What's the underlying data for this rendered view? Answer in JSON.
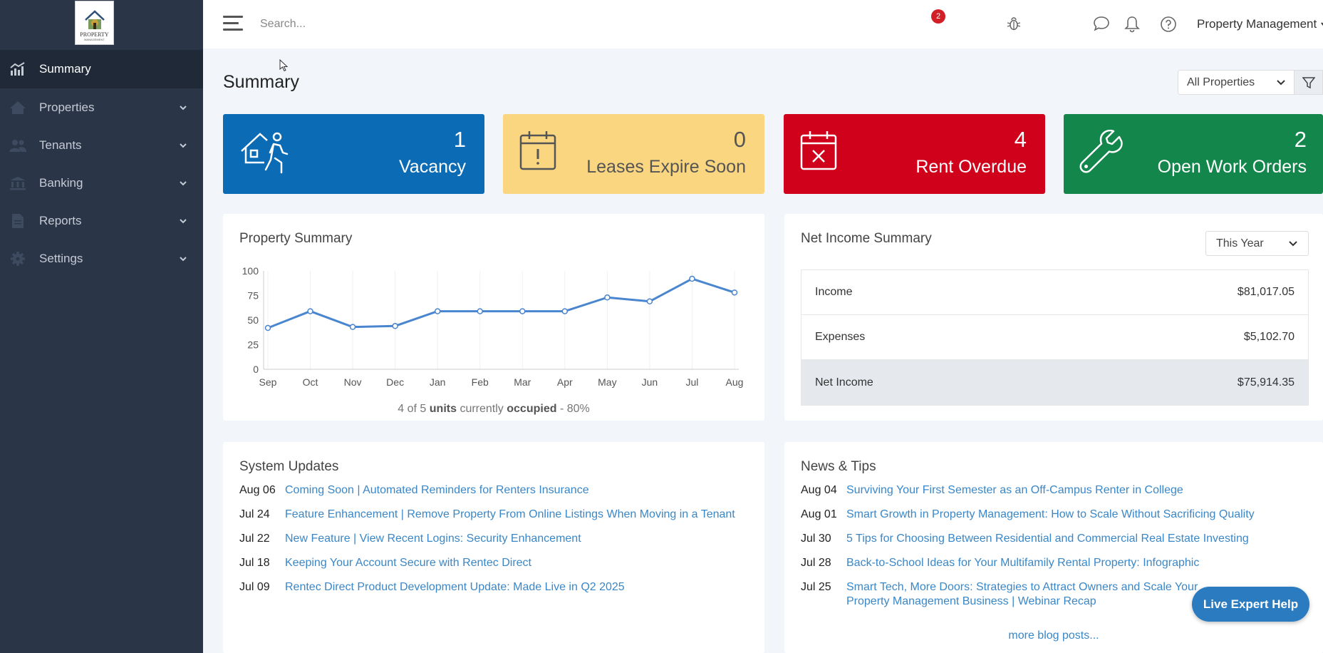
{
  "app": {
    "logo_text": "PROPERTY",
    "logo_sub": "MANAGEMENT"
  },
  "sidebar": {
    "items": [
      {
        "label": "Summary",
        "icon": "chart-icon",
        "active": true
      },
      {
        "label": "Properties",
        "icon": "home-icon"
      },
      {
        "label": "Tenants",
        "icon": "users-icon"
      },
      {
        "label": "Banking",
        "icon": "bank-icon"
      },
      {
        "label": "Reports",
        "icon": "report-icon"
      },
      {
        "label": "Settings",
        "icon": "gear-icon"
      }
    ]
  },
  "topbar": {
    "search_placeholder": "Search...",
    "notification_count": "2",
    "account_label": "Property Management"
  },
  "page": {
    "title": "Summary",
    "property_filter": "All Properties"
  },
  "cards": [
    {
      "value": "1",
      "label": "Vacancy",
      "color": "#0b6bb5",
      "icon": "vacancy-icon"
    },
    {
      "value": "0",
      "label": "Leases Expire Soon",
      "color": "#fad681",
      "icon": "calendar-alert-icon"
    },
    {
      "value": "4",
      "label": "Rent Overdue",
      "color": "#d0021b",
      "icon": "calendar-x-icon"
    },
    {
      "value": "2",
      "label": "Open Work Orders",
      "color": "#13864b",
      "icon": "wrench-icon"
    }
  ],
  "property_summary": {
    "title": "Property Summary",
    "occupancy": {
      "count": "4",
      "of": "of",
      "total": "5",
      "units": "units",
      "currently": "currently",
      "occupied": "occupied",
      "pct": "- 80%"
    }
  },
  "chart_data": {
    "type": "line",
    "categories": [
      "Sep",
      "Oct",
      "Nov",
      "Dec",
      "Jan",
      "Feb",
      "Mar",
      "Apr",
      "May",
      "Jun",
      "Jul",
      "Aug"
    ],
    "values": [
      42,
      59,
      43,
      44,
      59,
      59,
      59,
      59,
      73,
      69,
      92,
      78
    ],
    "ylim": [
      0,
      100
    ],
    "yticks": [
      0,
      25,
      50,
      75,
      100
    ],
    "color": "#4a86cf"
  },
  "net_income": {
    "title": "Net Income Summary",
    "period": "This Year",
    "rows": [
      {
        "label": "Income",
        "value": "$81,017.05"
      },
      {
        "label": "Expenses",
        "value": "$5,102.70"
      },
      {
        "label": "Net Income",
        "value": "$75,914.35"
      }
    ]
  },
  "system_updates": {
    "title": "System Updates",
    "items": [
      {
        "date": "Aug 06",
        "text": "Coming Soon | Automated Reminders for Renters Insurance"
      },
      {
        "date": "Jul 24",
        "text": "Feature Enhancement | Remove Property From Online Listings When Moving in a Tenant"
      },
      {
        "date": "Jul 22",
        "text": "New Feature | View Recent Logins: Security Enhancement"
      },
      {
        "date": "Jul 18",
        "text": "Keeping Your Account Secure with Rentec Direct"
      },
      {
        "date": "Jul 09",
        "text": "Rentec Direct Product Development Update: Made Live in Q2 2025"
      }
    ]
  },
  "news": {
    "title": "News & Tips",
    "items": [
      {
        "date": "Aug 04",
        "text": "Surviving Your First Semester as an Off-Campus Renter in College"
      },
      {
        "date": "Aug 01",
        "text": "Smart Growth in Property Management: How to Scale Without Sacrificing Quality"
      },
      {
        "date": "Jul 30",
        "text": "5 Tips for Choosing Between Residential and Commercial Real Estate Investing"
      },
      {
        "date": "Jul 28",
        "text": "Back-to-School Ideas for Your Multifamily Rental Property: Infographic"
      },
      {
        "date": "Jul 25",
        "text": "Smart Tech, More Doors: Strategies to Attract Owners and Scale Your Property Management Business | Webinar Recap"
      }
    ],
    "more": "more blog posts..."
  },
  "live_help": "Live Expert Help"
}
